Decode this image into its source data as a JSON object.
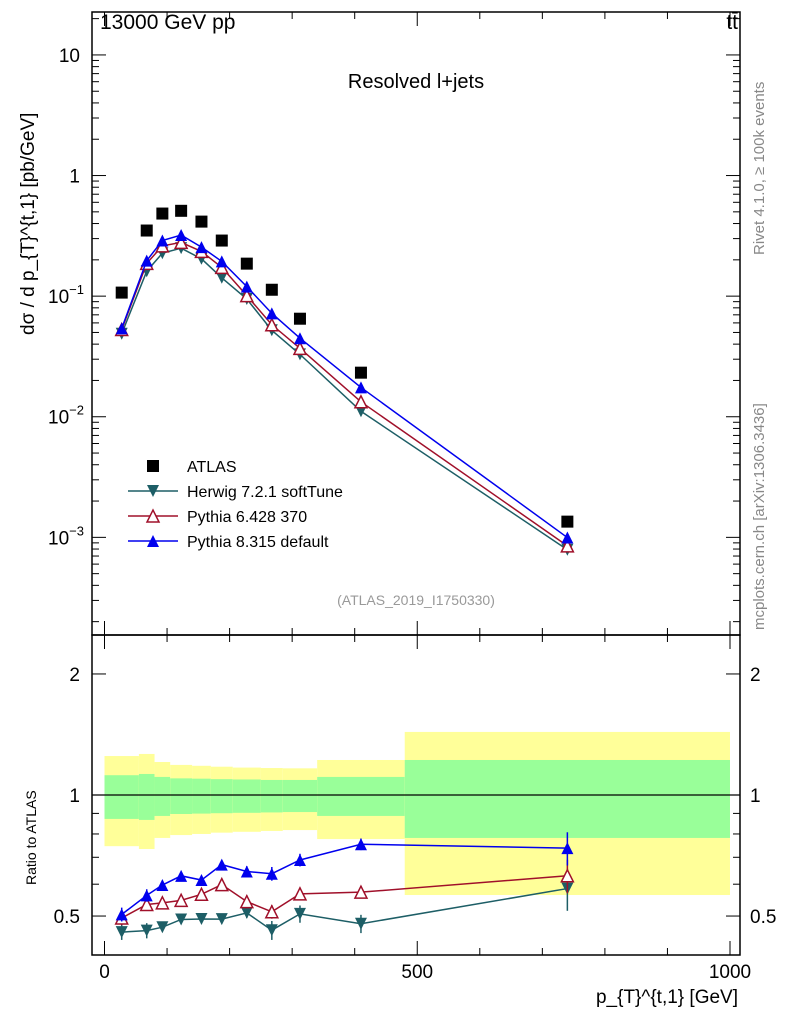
{
  "header": {
    "energy_label": "13000 GeV pp",
    "process_label": "tt̄"
  },
  "side": {
    "rivet_label": "Rivet 4.1.0, ≥ 100k events",
    "mcplots_label": "mcplots.cern.ch [arXiv:1306.3436]"
  },
  "chart_data": [
    {
      "type": "line",
      "title": "Resolved l+jets",
      "analysis_label": "(ATLAS_2019_I1750330)",
      "xlabel": "p_{T}^{t,1} [GeV]",
      "ylabel": "dσ / d p_{T}^{t,1} [pb/GeV]",
      "yscale": "log",
      "xlim": [
        -20,
        1016
      ],
      "ylim": [
        0.000155,
        22.7
      ],
      "x_ticks": [
        0,
        500,
        1000
      ],
      "y_ticks": [
        {
          "v": 10,
          "base": "10",
          "exp": ""
        },
        {
          "v": 1,
          "base": "1",
          "exp": ""
        },
        {
          "v": 0.1,
          "base": "10",
          "exp": "−1"
        },
        {
          "v": 0.01,
          "base": "10",
          "exp": "−2"
        },
        {
          "v": 0.001,
          "base": "10",
          "exp": "−3"
        }
      ],
      "legend_position": "bottom-left",
      "bin_edges": [
        0,
        55,
        80,
        105,
        140,
        170,
        205,
        250,
        285,
        340,
        480,
        1000
      ],
      "x": [
        27.5,
        67.5,
        92.5,
        122.5,
        155,
        187.5,
        227.5,
        267.5,
        312.5,
        410,
        740
      ],
      "series": [
        {
          "name": "ATLAS",
          "marker": "square",
          "color": "#000000",
          "values": [
            0.107,
            0.35,
            0.484,
            0.51,
            0.415,
            0.289,
            0.186,
            0.113,
            0.065,
            0.0232,
            0.00135
          ]
        },
        {
          "name": "Herwig 7.2.1 softTune",
          "marker": "triangle-down",
          "color": "#1d5e66",
          "values": [
            0.0488,
            0.161,
            0.227,
            0.25,
            0.204,
            0.142,
            0.0947,
            0.0521,
            0.0329,
            0.0111,
            0.00079
          ],
          "ratio_err": [
            0.02,
            0.02,
            0.01,
            0.01,
            0.01,
            0.01,
            0.015,
            0.025,
            0.025,
            0.025,
            0.07
          ]
        },
        {
          "name": "Pythia 6.428 370",
          "marker": "triangle-up-open",
          "color": "#a0102a",
          "values": [
            0.0529,
            0.187,
            0.261,
            0.279,
            0.235,
            0.173,
            0.101,
            0.0579,
            0.0369,
            0.0133,
            0.00085
          ],
          "ratio_err": [
            0.02,
            0.015,
            0.01,
            0.01,
            0.01,
            0.015,
            0.02,
            0.02,
            0.02,
            0.02,
            0.06
          ]
        },
        {
          "name": "Pythia 8.315 default",
          "marker": "triangle-up",
          "color": "#0000ee",
          "values": [
            0.054,
            0.197,
            0.289,
            0.321,
            0.255,
            0.194,
            0.12,
            0.072,
            0.0448,
            0.0175,
            0.000996
          ],
          "ratio_err": [
            0.02,
            0.02,
            0.01,
            0.01,
            0.015,
            0.015,
            0.02,
            0.025,
            0.025,
            0.025,
            0.07
          ]
        }
      ]
    },
    {
      "type": "line",
      "ylabel": "Ratio to ATLAS",
      "yscale": "log",
      "ylim": [
        0.4,
        2.5
      ],
      "y_ticks": [
        {
          "v": 2,
          "label": "2"
        },
        {
          "v": 1,
          "label": "1"
        },
        {
          "v": 0.5,
          "label": "0.5"
        }
      ],
      "bands": {
        "yellow_up": [
          1.25,
          1.265,
          1.208,
          1.188,
          1.182,
          1.176,
          1.17,
          1.167,
          1.165,
          1.222,
          1.435
        ],
        "green_up": [
          1.12,
          1.128,
          1.109,
          1.1,
          1.098,
          1.095,
          1.093,
          1.09,
          1.09,
          1.109,
          1.222
        ],
        "green_down": [
          0.872,
          0.867,
          0.887,
          0.897,
          0.899,
          0.901,
          0.903,
          0.905,
          0.907,
          0.887,
          0.782
        ],
        "yellow_down": [
          0.746,
          0.734,
          0.782,
          0.795,
          0.8,
          0.806,
          0.81,
          0.814,
          0.818,
          0.777,
          0.564
        ],
        "yellow_color": "#ffff99",
        "green_color": "#99ff99"
      }
    }
  ]
}
